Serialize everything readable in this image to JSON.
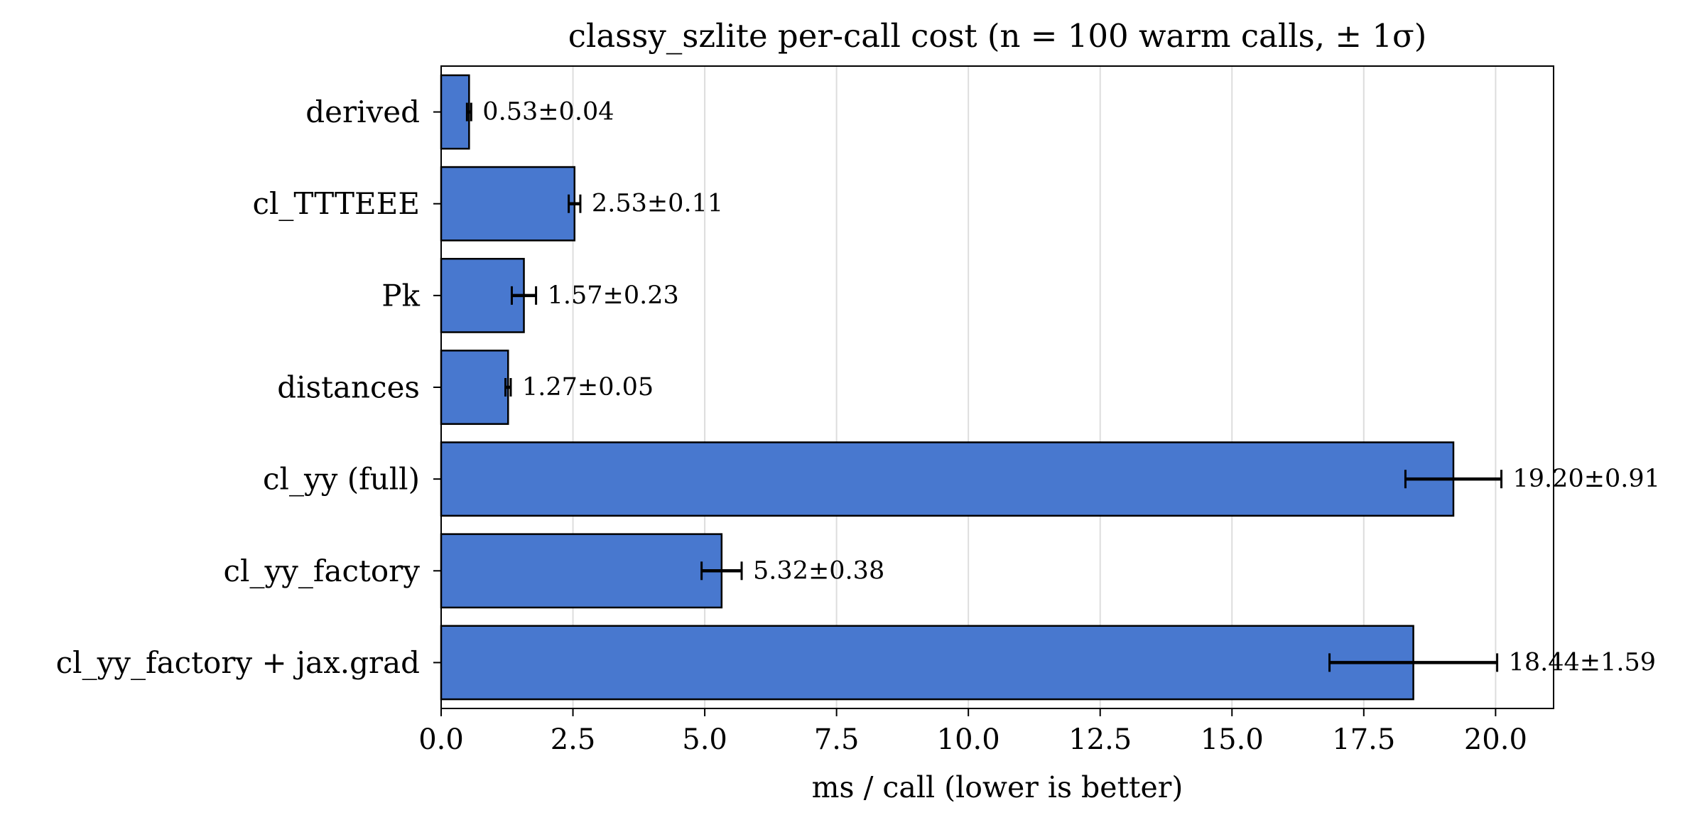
{
  "chart_data": {
    "type": "bar",
    "orientation": "horizontal",
    "title": "classy_szlite per-call cost (n = 100 warm calls, ± 1σ)",
    "xlabel": "ms / call (lower is better)",
    "ylabel": "",
    "xlim": [
      0,
      21.1
    ],
    "xticks": [
      "0.0",
      "2.5",
      "5.0",
      "7.5",
      "10.0",
      "12.5",
      "15.0",
      "17.5",
      "20.0"
    ],
    "grid": "x",
    "legend": "none",
    "bar_color": "#4878cf",
    "categories": [
      "derived",
      "cl_TTTEEE",
      "Pk",
      "distances",
      "cl_yy (full)",
      "cl_yy_factory",
      "cl_yy_factory + jax.grad"
    ],
    "values": [
      0.53,
      2.53,
      1.57,
      1.27,
      19.2,
      5.32,
      18.44
    ],
    "errors": [
      0.04,
      0.11,
      0.23,
      0.05,
      0.91,
      0.38,
      1.59
    ],
    "data_labels": [
      "0.53±0.04",
      "2.53±0.11",
      "1.57±0.23",
      "1.27±0.05",
      "19.20±0.91",
      "5.32±0.38",
      "18.44±1.59"
    ]
  }
}
